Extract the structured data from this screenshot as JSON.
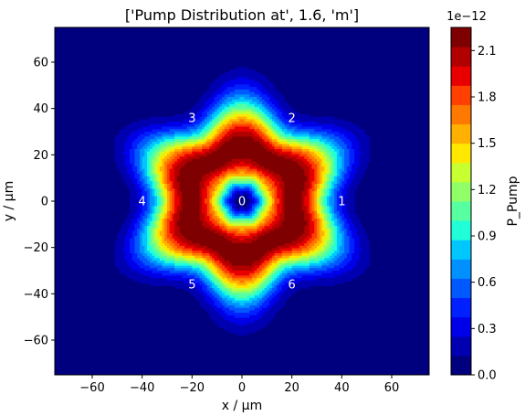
{
  "chart_data": {
    "type": "heatmap",
    "title": "['Pump Distribution at', 1.6, 'm']",
    "xlabel": "x / µm",
    "ylabel": "y / µm",
    "xlim": [
      -75,
      75
    ],
    "ylim": [
      -75,
      75
    ],
    "x_ticks": [
      "−60",
      "−40",
      "−20",
      "0",
      "20",
      "40",
      "60"
    ],
    "y_ticks": [
      "60",
      "40",
      "20",
      "0",
      "−20",
      "−40",
      "−60"
    ],
    "x_tick_values": [
      -60,
      -40,
      -20,
      0,
      20,
      40,
      60
    ],
    "y_tick_values": [
      60,
      40,
      20,
      0,
      -20,
      -40,
      -60
    ],
    "colorbar": {
      "label": "P_Pump",
      "offset_text": "1e−12",
      "ticks": [
        "0.0",
        "0.3",
        "0.6",
        "0.9",
        "1.2",
        "1.5",
        "1.8",
        "2.1"
      ],
      "tick_values": [
        0.0,
        0.3,
        0.6,
        0.9,
        1.2,
        1.5,
        1.8,
        2.1
      ],
      "range": [
        0.0,
        2.25
      ],
      "colors": [
        "#00007f",
        "#0000b0",
        "#0000e8",
        "#0020ff",
        "#0058ff",
        "#0090ff",
        "#00c8ff",
        "#20ffd8",
        "#58ffa0",
        "#90ff68",
        "#c8ff30",
        "#ffe800",
        "#ffb000",
        "#ff7800",
        "#ff4000",
        "#e80000",
        "#b00000",
        "#7f0000"
      ]
    },
    "core_labels": [
      {
        "label": "0",
        "x": 0,
        "y": 0
      },
      {
        "label": "1",
        "x": 40,
        "y": 0
      },
      {
        "label": "2",
        "x": 20,
        "y": 36
      },
      {
        "label": "3",
        "x": -20,
        "y": 36
      },
      {
        "label": "4",
        "x": -40,
        "y": 0
      },
      {
        "label": "5",
        "x": -20,
        "y": -36
      },
      {
        "label": "6",
        "x": 20,
        "y": -36
      }
    ],
    "field": {
      "background": "#00007f",
      "lobe_centers_deg": [
        30,
        90,
        150,
        210,
        270,
        330
      ],
      "ring_peak_radius": 22,
      "hole_radius": 6,
      "peak_value": 2.25
    }
  }
}
